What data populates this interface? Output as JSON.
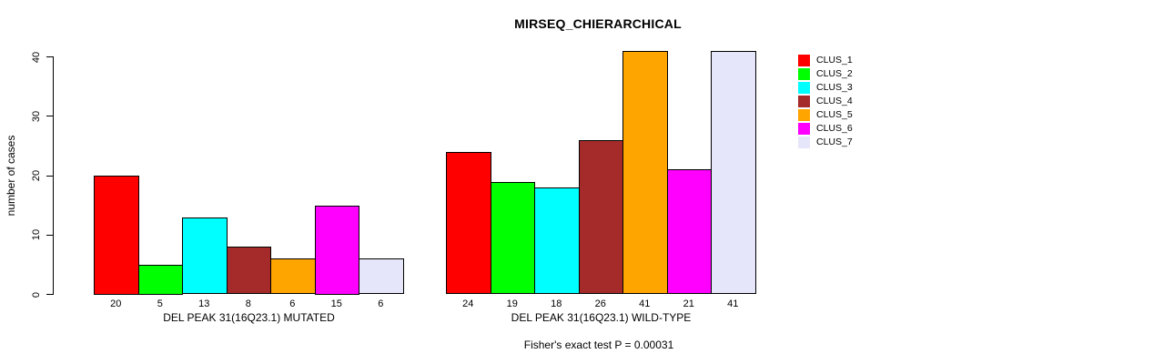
{
  "title": "MIRSEQ_CHIERARCHICAL",
  "chart_data": {
    "type": "bar",
    "title": "MIRSEQ_CHIERARCHICAL",
    "ylabel": "number of cases",
    "xlabel": "",
    "ylim": [
      0,
      41
    ],
    "yticks": [
      0,
      10,
      20,
      30,
      40
    ],
    "grid": false,
    "legend_position": "right",
    "categories": [
      "CLUS_1",
      "CLUS_2",
      "CLUS_3",
      "CLUS_4",
      "CLUS_5",
      "CLUS_6",
      "CLUS_7"
    ],
    "colors": [
      "#FF0000",
      "#00FF00",
      "#00FFFF",
      "#A52A2A",
      "#FFA500",
      "#FF00FF",
      "#E6E6FA"
    ],
    "groups": [
      {
        "label": "DEL PEAK 31(16Q23.1) MUTATED",
        "values": [
          20,
          5,
          13,
          8,
          6,
          15,
          6
        ]
      },
      {
        "label": "DEL PEAK 31(16Q23.1) WILD-TYPE",
        "values": [
          24,
          19,
          18,
          26,
          41,
          21,
          41
        ]
      }
    ],
    "annotation": "Fisher's exact test P = 0.00031"
  }
}
